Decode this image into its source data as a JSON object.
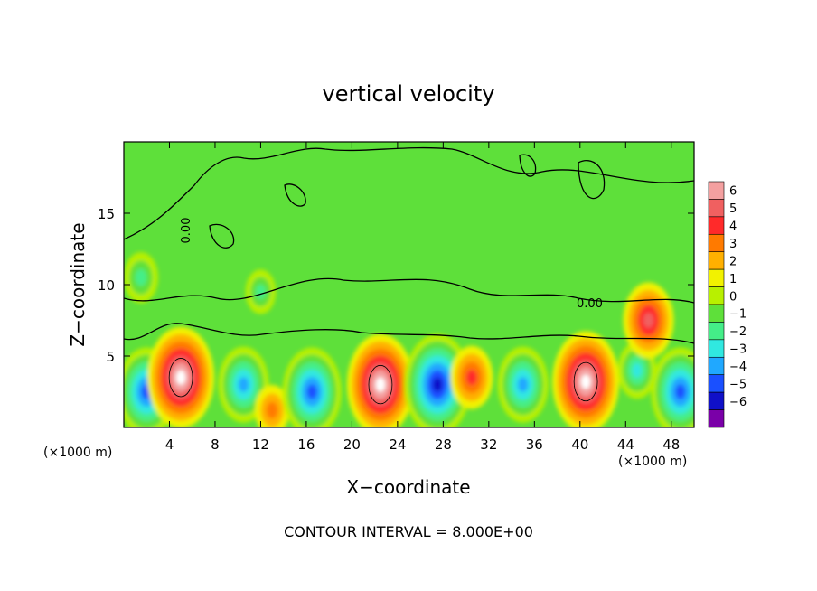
{
  "chart_data": {
    "type": "heatmap",
    "title": "vertical velocity",
    "xlabel": "X−coordinate",
    "ylabel": "Z−coordinate",
    "x_unit_left": "(×1000 m)",
    "x_unit_right": "(×1000 m)",
    "footer": "CONTOUR INTERVAL = 8.000E+00",
    "contour_labels": [
      "0.00",
      "0.00"
    ],
    "xlim": [
      0,
      50
    ],
    "ylim": [
      0,
      20
    ],
    "x_ticks": [
      "4",
      "8",
      "12",
      "16",
      "20",
      "24",
      "28",
      "32",
      "36",
      "40",
      "44",
      "48"
    ],
    "x_tick_values": [
      4,
      8,
      12,
      16,
      20,
      24,
      28,
      32,
      36,
      40,
      44,
      48
    ],
    "y_ticks": [
      "5",
      "10",
      "15"
    ],
    "y_tick_values": [
      5,
      10,
      15
    ],
    "colorbar": {
      "ticks": [
        "6",
        "5",
        "4",
        "3",
        "2",
        "1",
        "0",
        "−1",
        "−2",
        "−3",
        "−4",
        "−5",
        "−6"
      ],
      "values": [
        6,
        5,
        4,
        3,
        2,
        1,
        0,
        -1,
        -2,
        -3,
        -4,
        -5,
        -6
      ],
      "colors": [
        "#f4a0a0",
        "#f06060",
        "#ff2a2a",
        "#ff7a00",
        "#ffb000",
        "#f2f200",
        "#b8f000",
        "#5ee03a",
        "#44ee88",
        "#30e8e0",
        "#20a8ff",
        "#1a50ff",
        "#1010c8",
        "#7a00a8"
      ]
    },
    "features": [
      {
        "x": 2.0,
        "z": 2.5,
        "value": -5.0
      },
      {
        "x": 5.0,
        "z": 3.5,
        "value": 6.0
      },
      {
        "x": 10.5,
        "z": 3.0,
        "value": -4.0
      },
      {
        "x": 13.0,
        "z": 1.2,
        "value": 2.0
      },
      {
        "x": 16.5,
        "z": 2.5,
        "value": -5.0
      },
      {
        "x": 22.5,
        "z": 3.0,
        "value": 6.0
      },
      {
        "x": 27.5,
        "z": 3.0,
        "value": -6.0
      },
      {
        "x": 30.5,
        "z": 3.5,
        "value": 3.0
      },
      {
        "x": 35.0,
        "z": 3.0,
        "value": -4.0
      },
      {
        "x": 40.5,
        "z": 3.2,
        "value": 6.0
      },
      {
        "x": 45.0,
        "z": 4.0,
        "value": -2.5
      },
      {
        "x": 46.0,
        "z": 7.5,
        "value": 4.0
      },
      {
        "x": 48.8,
        "z": 2.5,
        "value": -5.0
      },
      {
        "x": 12.0,
        "z": 9.5,
        "value": -1.5
      },
      {
        "x": 1.5,
        "z": 10.5,
        "value": -2.0
      }
    ]
  }
}
